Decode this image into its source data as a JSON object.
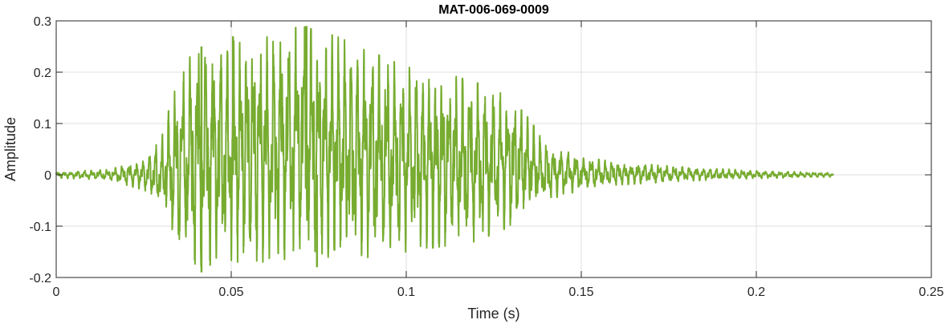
{
  "chart_data": {
    "type": "line",
    "title": "MAT-006-069-0009",
    "xlabel": "Time (s)",
    "ylabel": "Amplitude",
    "xlim": [
      0,
      0.25
    ],
    "ylim": [
      -0.2,
      0.3
    ],
    "xticks": [
      0,
      0.05,
      0.1,
      0.15,
      0.2,
      0.25
    ],
    "xtick_labels": [
      "0",
      "0.05",
      "0.1",
      "0.15",
      "0.2",
      "0.25"
    ],
    "yticks": [
      -0.2,
      -0.1,
      0,
      0.1,
      0.2,
      0.3
    ],
    "ytick_labels": [
      "-0.2",
      "-0.1",
      "0",
      "0.1",
      "0.2",
      "0.3"
    ],
    "grid": true,
    "line_color": "#77AC30",
    "signal_end_s": 0.222,
    "envelope": {
      "t": [
        0,
        0.015,
        0.025,
        0.03,
        0.035,
        0.04,
        0.05,
        0.06,
        0.07,
        0.08,
        0.09,
        0.1,
        0.11,
        0.12,
        0.13,
        0.135,
        0.14,
        0.15,
        0.16,
        0.18,
        0.2,
        0.222
      ],
      "upper": [
        0.006,
        0.01,
        0.03,
        0.07,
        0.2,
        0.25,
        0.26,
        0.27,
        0.29,
        0.27,
        0.24,
        0.21,
        0.2,
        0.18,
        0.15,
        0.11,
        0.06,
        0.035,
        0.025,
        0.015,
        0.008,
        0.004
      ],
      "lower": [
        -0.006,
        -0.01,
        -0.03,
        -0.07,
        -0.15,
        -0.18,
        -0.17,
        -0.17,
        -0.16,
        -0.17,
        -0.16,
        -0.15,
        -0.14,
        -0.13,
        -0.1,
        -0.07,
        -0.05,
        -0.03,
        -0.02,
        -0.012,
        -0.007,
        -0.004
      ]
    },
    "peaks": [
      {
        "t": 0.0415,
        "y": 0.25
      },
      {
        "t": 0.0505,
        "y": 0.27
      },
      {
        "t": 0.0715,
        "y": 0.29
      },
      {
        "t": 0.0415,
        "y": -0.19
      },
      {
        "t": 0.0745,
        "y": -0.18
      }
    ]
  }
}
